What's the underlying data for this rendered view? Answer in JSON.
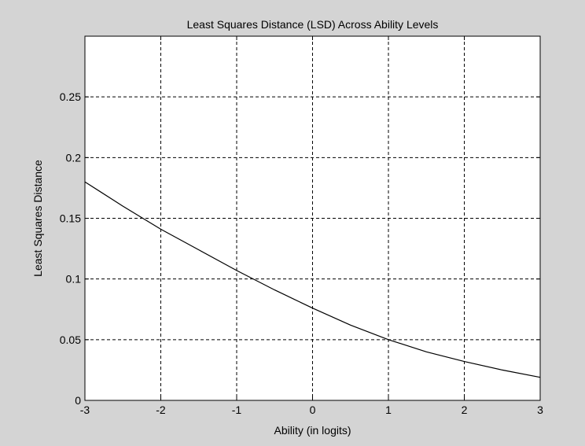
{
  "chart_data": {
    "type": "line",
    "title": "Least Squares Distance (LSD) Across Ability Levels",
    "xlabel": "Ability (in logits)",
    "ylabel": "Least Squares Distance",
    "xlim": [
      -3,
      3
    ],
    "ylim": [
      0,
      0.3
    ],
    "xticks": [
      -3,
      -2,
      -1,
      0,
      1,
      2,
      3
    ],
    "xtick_labels": [
      "-3",
      "-2",
      "-1",
      "0",
      "1",
      "2",
      "3"
    ],
    "yticks": [
      0,
      0.05,
      0.1,
      0.15,
      0.2,
      0.25
    ],
    "ytick_labels": [
      "0",
      "0.05",
      "0.1",
      "0.15",
      "0.2",
      "0.25"
    ],
    "grid": true,
    "grid_style": "dashed",
    "series": [
      {
        "color": "#000000",
        "x": [
          -3,
          -2.5,
          -2,
          -1.5,
          -1,
          -0.5,
          0,
          0.5,
          1,
          1.5,
          2,
          2.5,
          3
        ],
        "y": [
          0.18,
          0.16,
          0.141,
          0.124,
          0.107,
          0.091,
          0.076,
          0.062,
          0.05,
          0.04,
          0.032,
          0.025,
          0.019
        ]
      }
    ]
  }
}
